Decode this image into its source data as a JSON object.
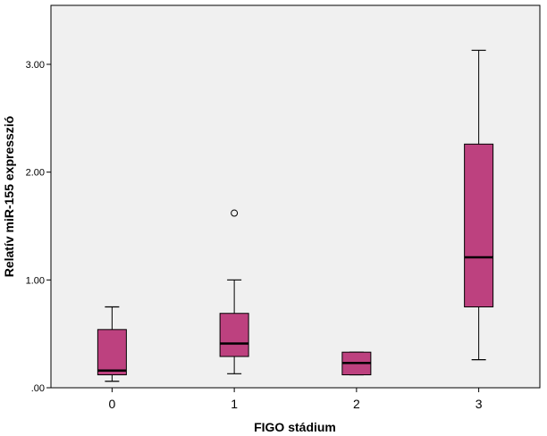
{
  "chart_data": {
    "type": "box",
    "xlabel": "FIGO stádium",
    "ylabel": "Relatív miR-155 expresszió",
    "categories": [
      "0",
      "1",
      "2",
      "3"
    ],
    "y_ticks": [
      {
        "value": 0,
        "label": ".00"
      },
      {
        "value": 1,
        "label": "1.00"
      },
      {
        "value": 2,
        "label": "2.00"
      },
      {
        "value": 3,
        "label": "3.00"
      }
    ],
    "ylim": [
      0,
      3.5
    ],
    "grid": false,
    "box_color": "#bd417f",
    "plot_background": "#f0f0f0",
    "boxes": [
      {
        "category": "0",
        "whisker_low": 0.06,
        "q1": 0.12,
        "median": 0.16,
        "q3": 0.54,
        "whisker_high": 0.75,
        "outliers": []
      },
      {
        "category": "1",
        "whisker_low": 0.13,
        "q1": 0.29,
        "median": 0.41,
        "q3": 0.69,
        "whisker_high": 1.0,
        "outliers": [
          1.62
        ]
      },
      {
        "category": "2",
        "whisker_low": 0.12,
        "q1": 0.12,
        "median": 0.23,
        "q3": 0.33,
        "whisker_high": 0.33,
        "outliers": []
      },
      {
        "category": "3",
        "whisker_low": 0.26,
        "q1": 0.75,
        "median": 1.21,
        "q3": 2.26,
        "whisker_high": 3.13,
        "outliers": []
      }
    ]
  }
}
